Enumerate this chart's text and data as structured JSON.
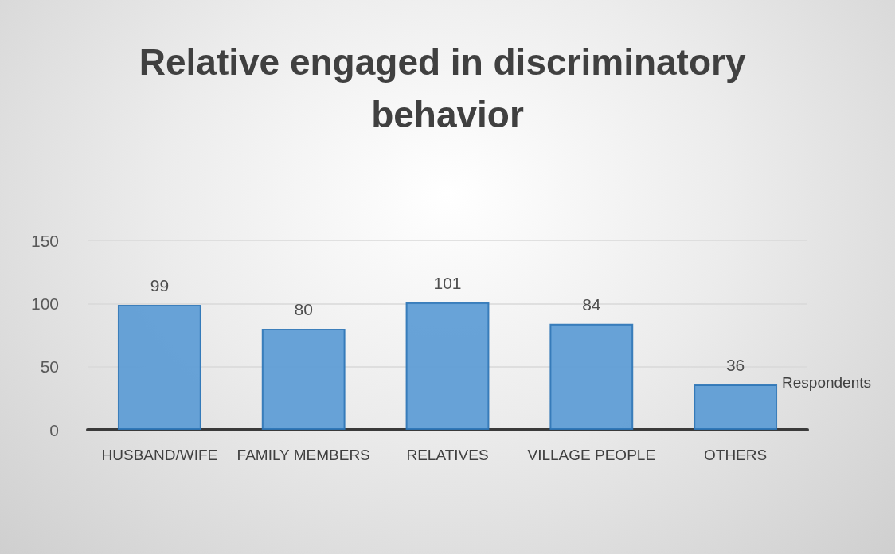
{
  "chart_data": {
    "type": "bar",
    "title": "Relative engaged in discriminatory behavior",
    "categories": [
      "HUSBAND/WIFE",
      "FAMILY MEMBERS",
      "RELATIVES",
      "VILLAGE PEOPLE",
      "OTHERS"
    ],
    "series": [
      {
        "name": "Respondents",
        "color": "#5b9bd5",
        "values": [
          99,
          80,
          101,
          84,
          36
        ]
      }
    ],
    "ylim": [
      0,
      150
    ],
    "yticks": [
      0,
      50,
      100,
      150
    ],
    "grid": "y",
    "data_labels": true
  }
}
